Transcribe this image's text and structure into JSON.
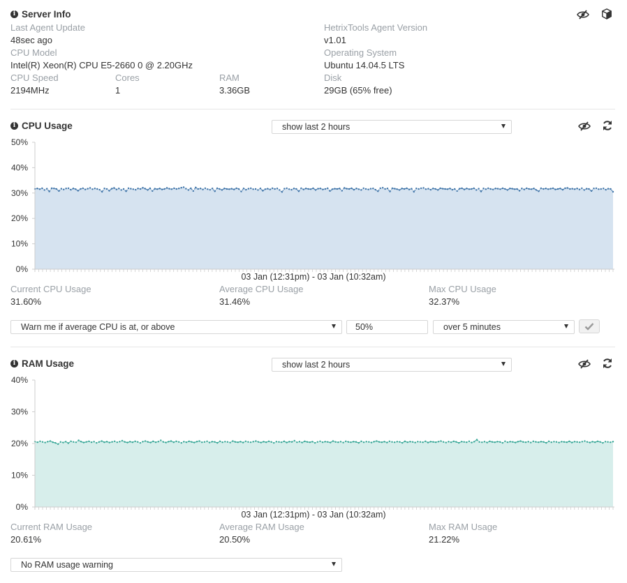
{
  "server_info": {
    "title": "Server Info",
    "last_agent_update_label": "Last Agent Update",
    "last_agent_update_value": "48sec ago",
    "agent_version_label": "HetrixTools Agent Version",
    "agent_version_value": "v1.01",
    "cpu_model_label": "CPU Model",
    "cpu_model_value": "Intel(R) Xeon(R) CPU E5-2660 0 @ 2.20GHz",
    "os_label": "Operating System",
    "os_value": "Ubuntu 14.04.5 LTS",
    "cpu_speed_label": "CPU Speed",
    "cpu_speed_value": "2194MHz",
    "cores_label": "Cores",
    "cores_value": "1",
    "ram_label": "RAM",
    "ram_value": "3.36GB",
    "disk_label": "Disk",
    "disk_value": "29GB (65% free)"
  },
  "cpu": {
    "title": "CPU Usage",
    "range_select": "show last 2 hours",
    "current_label": "Current CPU Usage",
    "current_value": "31.60%",
    "average_label": "Average CPU Usage",
    "average_value": "31.46%",
    "max_label": "Max CPU Usage",
    "max_value": "32.37%",
    "warn_select": "Warn me if average CPU is at, or above",
    "threshold_value": "50%",
    "duration_select": "over 5 minutes"
  },
  "ram": {
    "title": "RAM Usage",
    "range_select": "show last 2 hours",
    "current_label": "Current RAM Usage",
    "current_value": "20.61%",
    "average_label": "Average RAM Usage",
    "average_value": "20.50%",
    "max_label": "Max RAM Usage",
    "max_value": "21.22%",
    "warn_select": "No RAM usage warning"
  },
  "icons": [
    "info-icon",
    "eye-slash-icon",
    "cube-icon",
    "refresh-icon",
    "check-icon"
  ],
  "colors": {
    "cpu_line": "#3f74a8",
    "cpu_fill": "#d6e3f0",
    "ram_line": "#3aa898",
    "ram_fill": "#d7eeeb",
    "label": "#9aa0a6"
  },
  "chart_data": [
    {
      "type": "area",
      "xlabel": "03 Jan (12:31pm) - 03 Jan (10:32am)",
      "ylim": [
        0,
        50
      ],
      "yticks": [
        "0%",
        "10%",
        "20%",
        "30%",
        "40%",
        "50%"
      ],
      "grid": false,
      "series": [
        {
          "values": [
            31.6,
            31.8,
            31.5,
            31.9,
            31.2,
            31.7,
            30.6,
            31.9,
            31.8,
            31.6,
            30.8,
            31.7,
            31.4,
            31.8,
            31.9,
            31.3,
            31.8,
            31.5,
            30.9,
            31.6,
            31.9,
            31.4,
            31.7,
            32.0,
            31.5,
            31.8,
            31.6,
            31.3,
            30.5,
            31.8,
            31.6,
            30.9,
            31.7,
            32.0,
            31.4,
            31.8,
            31.2,
            31.6,
            30.7,
            31.9,
            31.7,
            31.5,
            31.3,
            31.8,
            31.6,
            32.1,
            31.7,
            31.2,
            31.9,
            30.8,
            31.7,
            31.5,
            31.8,
            31.4,
            31.6,
            32.0,
            31.7,
            31.5,
            31.9,
            31.6,
            31.8,
            32.1,
            32.3,
            31.7,
            31.2,
            31.9,
            30.8,
            32.2,
            31.6,
            31.8,
            31.4,
            31.9,
            31.5,
            31.3,
            31.8,
            30.7,
            31.9,
            31.6,
            31.2,
            31.8,
            31.6,
            31.5,
            31.7,
            31.4,
            31.9,
            31.6,
            30.6,
            31.8,
            31.3,
            31.7,
            31.9,
            31.5,
            31.6,
            31.2,
            31.8,
            30.9,
            31.5,
            31.7,
            31.4,
            31.9,
            31.6,
            31.8,
            31.2,
            30.4,
            31.7,
            31.9,
            31.5,
            31.3,
            31.8,
            31.6,
            30.7,
            31.9,
            31.4,
            31.8,
            31.6,
            31.5,
            31.9,
            31.2,
            31.7,
            31.8,
            31.4,
            31.6,
            31.9,
            30.8,
            31.5,
            31.7,
            31.6,
            31.8,
            30.9,
            32.0,
            31.7,
            31.6,
            31.9,
            31.3,
            31.8,
            31.5,
            31.2,
            31.9,
            31.6,
            31.4,
            31.7,
            31.8,
            31.3,
            30.7,
            31.9,
            32.1,
            31.6,
            31.8,
            30.6,
            31.9,
            31.7,
            31.5,
            31.2,
            31.8,
            31.6,
            31.9,
            31.4,
            31.7,
            30.5,
            31.8,
            31.6,
            31.9,
            32.0,
            31.5,
            31.7,
            31.3,
            31.8,
            31.6,
            31.2,
            31.9,
            31.7,
            31.6,
            31.5,
            31.8,
            31.3,
            31.6,
            30.8,
            31.7,
            31.9,
            31.4,
            31.8,
            31.5,
            31.6,
            31.9,
            31.2,
            31.7,
            30.6,
            31.8,
            31.5,
            31.9,
            31.6,
            31.4,
            31.8,
            31.7,
            31.5,
            31.9,
            31.6,
            31.2,
            31.8,
            31.7,
            31.5,
            31.6,
            30.9,
            31.8,
            31.4,
            31.9,
            31.6,
            31.5,
            31.8,
            31.2,
            30.7,
            31.9,
            31.6,
            31.8,
            31.5,
            31.7,
            31.9,
            31.4,
            31.6,
            31.8,
            31.3,
            31.9,
            32.0,
            31.6,
            31.7,
            31.5,
            31.8,
            31.4,
            31.9,
            31.2,
            31.7,
            31.6,
            30.8,
            31.8,
            31.9,
            31.5,
            31.6,
            31.8,
            31.3,
            31.7,
            31.6,
            30.5
          ]
        }
      ]
    },
    {
      "type": "area",
      "xlabel": "03 Jan (12:31pm) - 03 Jan (10:32am)",
      "ylim": [
        0,
        40
      ],
      "yticks": [
        "0%",
        "10%",
        "20%",
        "30%",
        "40%"
      ],
      "grid": false,
      "series": [
        {
          "values": [
            20.6,
            20.4,
            20.7,
            20.5,
            20.3,
            20.6,
            20.8,
            20.4,
            20.2,
            19.8,
            20.5,
            20.3,
            20.6,
            20.1,
            20.7,
            20.5,
            20.4,
            21.0,
            20.6,
            20.3,
            20.5,
            20.7,
            20.4,
            20.6,
            20.2,
            20.5,
            20.8,
            20.4,
            20.6,
            20.3,
            20.5,
            20.7,
            20.4,
            20.6,
            20.9,
            20.5,
            20.3,
            20.6,
            20.4,
            20.7,
            20.5,
            20.2,
            20.6,
            20.8,
            20.5,
            20.3,
            20.7,
            20.4,
            20.6,
            21.0,
            20.5,
            20.3,
            20.6,
            20.8,
            20.4,
            20.7,
            20.5,
            20.2,
            20.6,
            20.4,
            20.7,
            20.5,
            20.3,
            20.6,
            20.8,
            20.4,
            20.5,
            20.7,
            20.3,
            20.6,
            20.5,
            20.2,
            20.7,
            20.4,
            20.6,
            20.5,
            20.3,
            20.8,
            20.5,
            20.4,
            20.6,
            20.3,
            20.7,
            20.5,
            20.4,
            20.6,
            20.8,
            20.5,
            20.3,
            20.6,
            20.4,
            20.7,
            20.5,
            20.2,
            20.6,
            20.5,
            20.4,
            20.7,
            20.3,
            20.6,
            20.5,
            20.9,
            20.4,
            20.6,
            20.3,
            20.7,
            20.5,
            20.4,
            20.6,
            20.2,
            20.5,
            20.7,
            20.4,
            20.6,
            20.5,
            20.3,
            20.8,
            20.5,
            20.4,
            20.6,
            20.3,
            20.7,
            20.5,
            20.4,
            20.6,
            20.5,
            20.2,
            20.7,
            20.4,
            20.6,
            20.5,
            20.3,
            20.6,
            20.8,
            20.5,
            20.4,
            20.6,
            20.3,
            20.7,
            20.5,
            20.4,
            20.6,
            20.5,
            20.2,
            20.7,
            20.4,
            20.6,
            20.5,
            20.3,
            20.6,
            20.5,
            20.4,
            20.7,
            20.3,
            20.6,
            20.5,
            20.4,
            20.6,
            20.8,
            20.5,
            20.3,
            20.6,
            20.4,
            20.7,
            20.5,
            20.2,
            20.6,
            20.5,
            20.4,
            20.7,
            20.3,
            20.6,
            21.2,
            20.5,
            20.4,
            20.6,
            20.3,
            20.7,
            20.5,
            20.4,
            20.6,
            20.5,
            20.2,
            20.7,
            20.4,
            20.6,
            20.5,
            20.3,
            20.6,
            20.8,
            20.5,
            20.4,
            20.6,
            20.3,
            20.7,
            20.5,
            20.4,
            20.6,
            20.5,
            20.2,
            20.7,
            20.4,
            20.6,
            20.5,
            20.3,
            20.6,
            20.5,
            20.4,
            20.7,
            20.3,
            20.6,
            20.5,
            20.4,
            20.6,
            20.8,
            20.5,
            20.3,
            20.6,
            20.4,
            20.7,
            20.5,
            20.2,
            20.6,
            20.5,
            20.4,
            20.6
          ]
        }
      ]
    }
  ]
}
